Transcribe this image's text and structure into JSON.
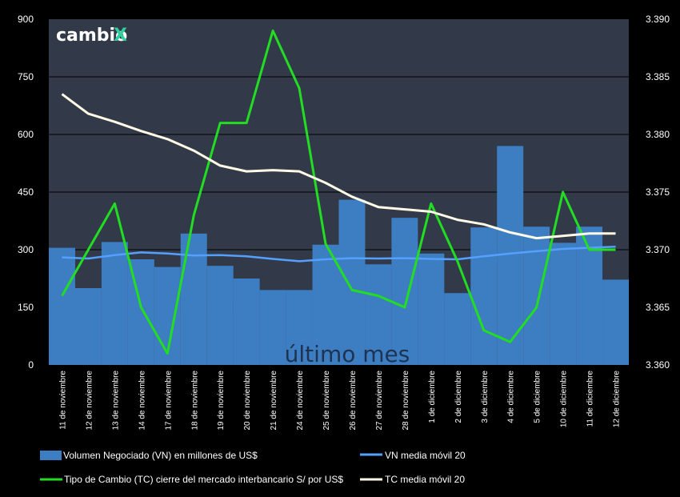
{
  "brand": {
    "name": "cambio",
    "mark": "X"
  },
  "watermark": "último mes",
  "colors": {
    "background": "#000000",
    "plot_bg": "#323a49",
    "gridline": "#000000",
    "bars": "#3d7ec2",
    "vn_ma": "#55a0ff",
    "tc": "#22dd22",
    "tc_ma": "#fffbe6",
    "brand_x": "#2fcfa0"
  },
  "legend": {
    "bars": "Volumen Negociado (VN) en millones de US$",
    "vn_ma": "VN media móvil 20",
    "tc": "Tipo de Cambio (TC) cierre del mercado interbancario S/ por US$",
    "tc_ma": "TC media móvil 20"
  },
  "chart_data": {
    "type": "bar",
    "categories": [
      "11 de noviembre",
      "12 de noviembre",
      "13 de noviembre",
      "14 de noviembre",
      "17 de noviembre",
      "18 de noviembre",
      "19 de noviembre",
      "20 de noviembre",
      "21 de noviembre",
      "24 de noviembre",
      "25 de noviembre",
      "26 de noviembre",
      "27 de noviembre",
      "28 de noviembre",
      "1 de diciembre",
      "2 de diciembre",
      "3 de diciembre",
      "4 de diciembre",
      "5 de diciembre",
      "10 de diciembre",
      "11 de diciembre",
      "12 de diciembre"
    ],
    "y_left": {
      "ylim": [
        0,
        900
      ],
      "ticks": [
        "0",
        "150",
        "300",
        "450",
        "600",
        "750",
        "900"
      ]
    },
    "y_right": {
      "ylim": [
        3.36,
        3.39
      ],
      "ticks": [
        "3.360",
        "3.365",
        "3.370",
        "3.375",
        "3.380",
        "3.385",
        "3.390"
      ]
    },
    "grid": true,
    "legend_position": "bottom",
    "series": [
      {
        "name": "Volumen Negociado (VN) en millones de US$",
        "type": "bar",
        "axis": "left",
        "values": [
          305,
          200,
          320,
          275,
          255,
          342,
          258,
          225,
          195,
          195,
          313,
          430,
          262,
          383,
          290,
          187,
          358,
          570,
          360,
          318,
          360,
          222
        ]
      },
      {
        "name": "VN media móvil 20",
        "type": "line",
        "axis": "left",
        "values": [
          280,
          277,
          286,
          293,
          290,
          285,
          286,
          283,
          276,
          270,
          275,
          278,
          277,
          278,
          276,
          275,
          283,
          290,
          296,
          302,
          305,
          308
        ]
      },
      {
        "name": "Tipo de Cambio (TC) cierre del mercado interbancario S/ por US$",
        "type": "line",
        "axis": "right",
        "values": [
          3.366,
          3.37,
          3.374,
          3.365,
          3.361,
          3.373,
          3.381,
          3.381,
          3.389,
          3.384,
          3.3705,
          3.3665,
          3.366,
          3.365,
          3.374,
          3.369,
          3.363,
          3.362,
          3.365,
          3.375,
          3.37,
          3.37
        ]
      },
      {
        "name": "TC media móvil 20",
        "type": "line",
        "axis": "right",
        "values": [
          3.3835,
          3.3818,
          3.3811,
          3.3803,
          3.3796,
          3.3786,
          3.3773,
          3.3768,
          3.3769,
          3.3768,
          3.3758,
          3.3746,
          3.3737,
          3.3735,
          3.3733,
          3.3726,
          3.3722,
          3.3715,
          3.371,
          3.3712,
          3.3714,
          3.3714
        ]
      }
    ]
  }
}
